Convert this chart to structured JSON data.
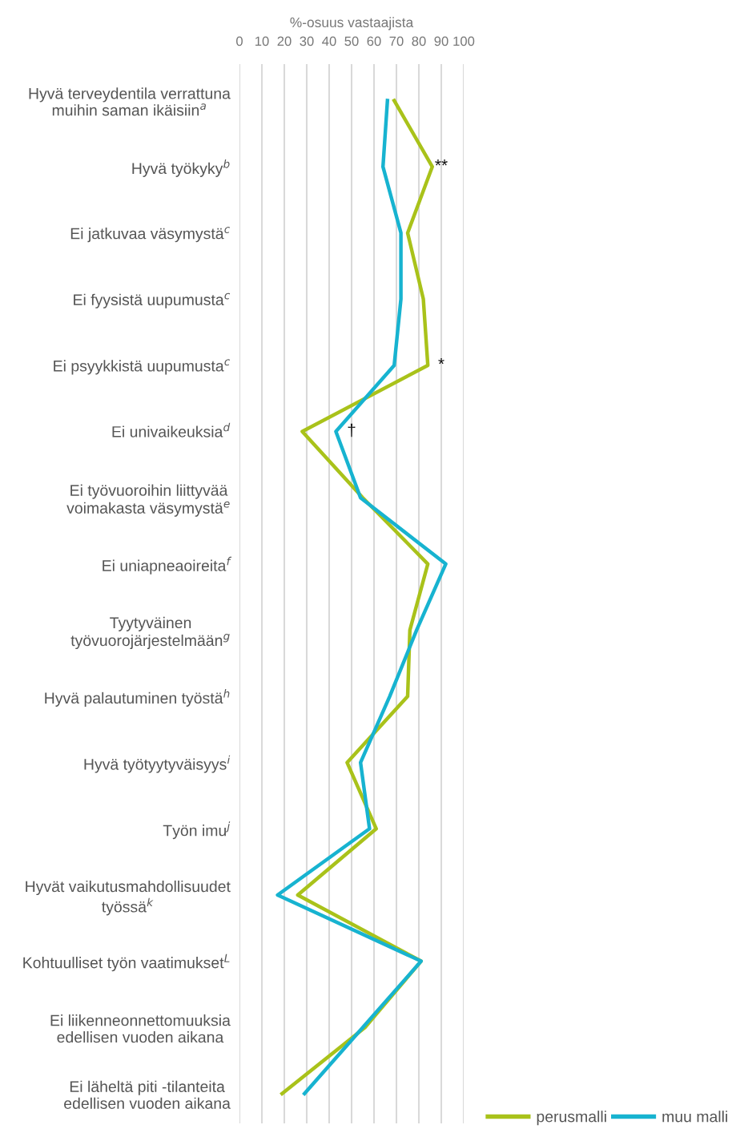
{
  "chart_data": {
    "type": "line",
    "orientation": "horizontal",
    "xlabel": "%-osuus vastaajista",
    "categories": [
      "Hyvä terveydentila verrattuna\nmuihin saman ikäisiin$^{a}$",
      "Hyvä työkyky$^{b}$",
      "Ei jatkuvaa väsymystä$^{c}$",
      "Ei fyysistä uupumusta$^{c}$",
      "Ei psyykkistä uupumusta$^{c}$",
      "Ei univaikeuksia$^{d}$",
      "Ei työvuoroihin liittyvää\nvoimakasta väsymystä$^{e}$",
      "Ei uniapneaoireita$^{f}$",
      "Tyytyväinen\ntyövuorojärjestelmään$^{g}$",
      "Hyvä palautuminen työstä$^{h}$",
      "Hyvä työtyytyväisyys$^{i}$",
      "Työn imu$^{j}$",
      "Hyvät vaikutusmahdollisuudet\ntyössä$^{k}$",
      "Kohtuulliset työn vaatimukset$^{L}$",
      "Ei liikenneonnettomuuksia\nedellisen vuoden aikana",
      "Ei läheltä piti -tilanteita\nedellisen vuoden aikana"
    ],
    "series": [
      {
        "name": "perusmalli",
        "color": "#a9c21a",
        "values": [
          69,
          86,
          75,
          82,
          84,
          28,
          55,
          84,
          76,
          75,
          48,
          61,
          26,
          81,
          56,
          19
        ]
      },
      {
        "name": "muu malli",
        "color": "#17b3d0",
        "values": [
          66,
          64,
          72,
          72,
          69,
          43,
          54,
          92,
          79,
          67,
          54,
          58,
          17,
          81,
          55,
          29
        ]
      }
    ],
    "xlim": [
      0,
      100
    ],
    "xticks": [
      0,
      10,
      20,
      30,
      40,
      50,
      60,
      70,
      80,
      90,
      100
    ],
    "grid": "x",
    "legend": "bottom right",
    "marker": "none",
    "line_style": "solid",
    "annotations": [
      "**",
      "*",
      "†"
    ]
  }
}
